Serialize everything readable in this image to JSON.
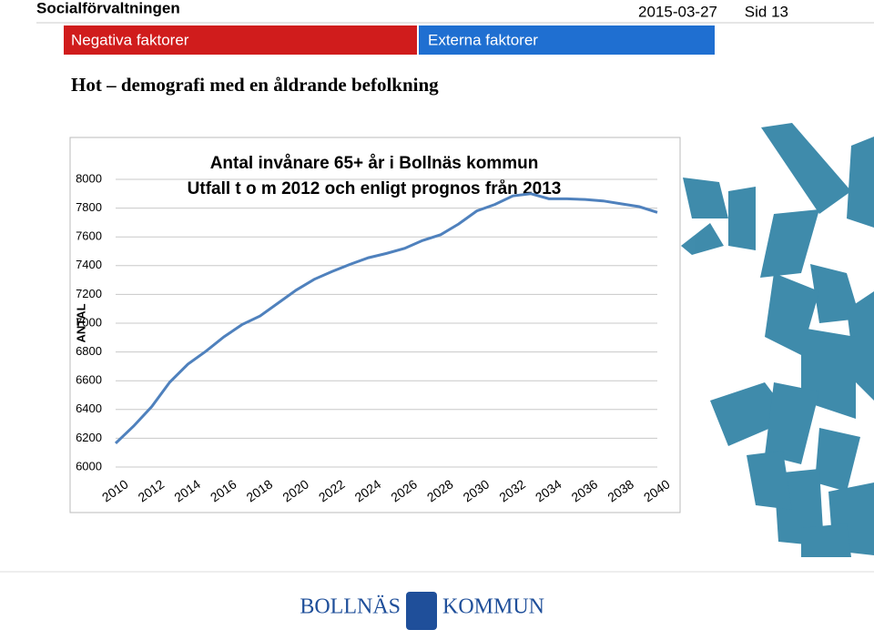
{
  "header": {
    "department": "Socialförvaltningen",
    "date": "2015-03-27",
    "page": "Sid 13",
    "tabs": [
      "Negativa faktorer",
      "Externa faktorer"
    ]
  },
  "heading": "Hot – demografi med en åldrande befolkning",
  "footer": {
    "logo_left": "BOLLNÄS",
    "logo_right": "KOMMUN"
  },
  "chart_data": {
    "type": "line",
    "title": "Antal invånare 65+ år i Bollnäs kommun",
    "subtitle": "Utfall t o m 2012 och enligt prognos från 2013",
    "y_label": "ANTAL",
    "categories": [
      "2010",
      null,
      "2012",
      null,
      "2014",
      null,
      "2016",
      null,
      "2018",
      null,
      "2020",
      null,
      "2022",
      null,
      "2024",
      null,
      "2026",
      null,
      "2028",
      null,
      "2030",
      null,
      "2032",
      null,
      "2034",
      null,
      "2036",
      null,
      "2038",
      null,
      "2040"
    ],
    "series": [
      {
        "name": "Antal invånare 65+",
        "color": "#4f81bd",
        "values": [
          6165,
          6285,
          6420,
          6590,
          6715,
          6805,
          6905,
          6990,
          7050,
          7140,
          7230,
          7305,
          7360,
          7410,
          7455,
          7485,
          7520,
          7575,
          7615,
          7690,
          7780,
          7825,
          7885,
          7900,
          7865,
          7865,
          7860,
          7850,
          7830,
          7810,
          7770
        ]
      }
    ],
    "ylim": [
      6000,
      8000
    ],
    "yticks": [
      6000,
      6200,
      6400,
      6600,
      6800,
      7000,
      7200,
      7400,
      7600,
      7800,
      8000
    ],
    "grid": true
  }
}
